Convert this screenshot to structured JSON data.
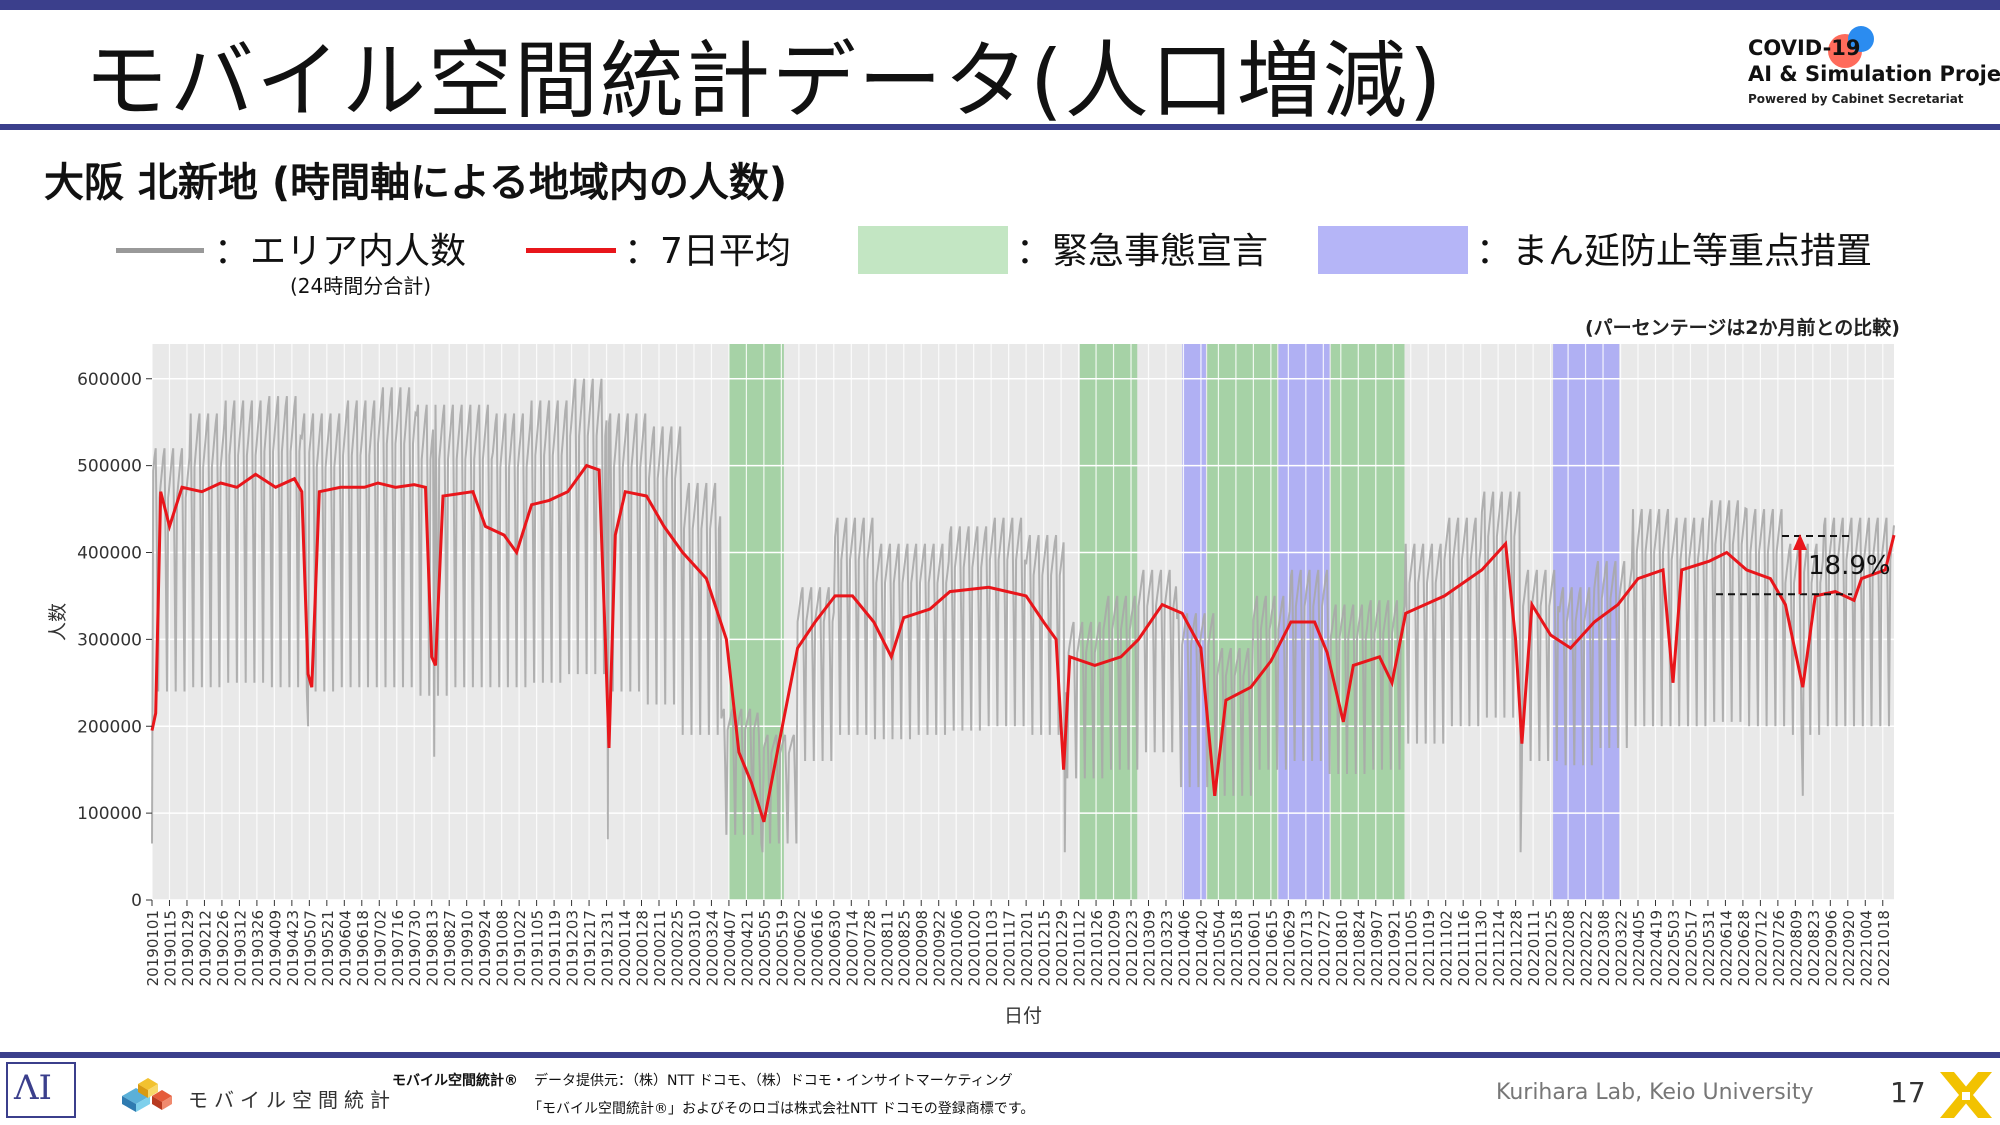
{
  "slide": {
    "title": "モバイル空間統計データ(人口増減)",
    "logo": {
      "line1": "COVID-19",
      "line2": "AI & Simulation Project",
      "line3": "Powered by Cabinet Secretariat"
    },
    "subtitle": "大阪 北新地 (時間軸による地域内の人数)",
    "legend": {
      "area_count": "：エリア内人数",
      "area_count_note": "(24時間分合計)",
      "avg7": "：7日平均",
      "emergency": "：緊急事態宣言",
      "semi_emergency": "：まん延防止等重点措置"
    },
    "colors": {
      "raw_series": "#a9a9a9",
      "avg_series": "#e8161b",
      "emergency_band": "#8fc98f",
      "semi_emergency_band": "#9c9cf5",
      "plot_background": "#e9e9e9",
      "accent": "#3b3f8c"
    },
    "footer": {
      "brand_mark": "モバイル空間統計®",
      "brand_text": "モバイル空間統計",
      "provider": "データ提供元：（株）NTT ドコモ、（株）ドコモ・インサイトマーケティング",
      "trademark": "「モバイル空間統計®」およびそのロゴは株式会社NTT ドコモの登録商標です。",
      "lab": "Kurihara Lab, Keio University",
      "page": "17"
    }
  },
  "chart_data": {
    "type": "line",
    "title": "",
    "xlabel": "日付",
    "ylabel": "人数",
    "note": "(パーセンテージは2か月前との比較)",
    "ylim": [
      0,
      640000
    ],
    "yticks": [
      0,
      100000,
      200000,
      300000,
      400000,
      500000,
      600000
    ],
    "x_range": [
      "20190101",
      "20221027"
    ],
    "x_tick_labels": [
      "20190101",
      "20190115",
      "20190129",
      "20190212",
      "20190226",
      "20190312",
      "20190326",
      "20190409",
      "20190423",
      "20190507",
      "20190521",
      "20190604",
      "20190618",
      "20190702",
      "20190716",
      "20190730",
      "20190813",
      "20190827",
      "20190910",
      "20190924",
      "20191008",
      "20191022",
      "20191105",
      "20191119",
      "20191203",
      "20191217",
      "20191231",
      "20200114",
      "20200128",
      "20200211",
      "20200225",
      "20200310",
      "20200324",
      "20200407",
      "20200421",
      "20200505",
      "20200519",
      "20200602",
      "20200616",
      "20200630",
      "20200714",
      "20200728",
      "20200811",
      "20200825",
      "20200908",
      "20200922",
      "20201006",
      "20201020",
      "20201103",
      "20201117",
      "20201201",
      "20201215",
      "20201229",
      "20210112",
      "20210126",
      "20210209",
      "20210223",
      "20210309",
      "20210323",
      "20210406",
      "20210420",
      "20210504",
      "20210518",
      "20210601",
      "20210615",
      "20210629",
      "20210713",
      "20210727",
      "20210810",
      "20210824",
      "20210907",
      "20210921",
      "20211005",
      "20211019",
      "20211102",
      "20211116",
      "20211130",
      "20211214",
      "20211228",
      "20220111",
      "20220125",
      "20220208",
      "20220222",
      "20220308",
      "20220322",
      "20220405",
      "20220419",
      "20220503",
      "20220517",
      "20220531",
      "20220614",
      "20220628",
      "20220712",
      "20220726",
      "20220809",
      "20220823",
      "20220906",
      "20220920",
      "20221004",
      "20221018"
    ],
    "grid": true,
    "emergency_periods": [
      [
        "20200407",
        "20200521"
      ],
      [
        "20210113",
        "20210228"
      ],
      [
        "20210425",
        "20210620"
      ],
      [
        "20210802",
        "20210930"
      ]
    ],
    "semi_emergency_periods": [
      [
        "20210405",
        "20210424"
      ],
      [
        "20210621",
        "20210801"
      ],
      [
        "20220127",
        "20220321"
      ]
    ],
    "series": [
      {
        "name": "エリア内人数",
        "style": "daily",
        "monthly_profile": [
          {
            "month": "201901",
            "weekday": 520000,
            "weekend": 240000
          },
          {
            "month": "201902",
            "weekday": 560000,
            "weekend": 245000
          },
          {
            "month": "201903",
            "weekday": 575000,
            "weekend": 250000
          },
          {
            "month": "201904",
            "weekday": 580000,
            "weekend": 245000
          },
          {
            "month": "201905",
            "weekday": 560000,
            "weekend": 240000
          },
          {
            "month": "201906",
            "weekday": 575000,
            "weekend": 245000
          },
          {
            "month": "201907",
            "weekday": 590000,
            "weekend": 245000
          },
          {
            "month": "201908",
            "weekday": 570000,
            "weekend": 235000
          },
          {
            "month": "201909",
            "weekday": 570000,
            "weekend": 245000
          },
          {
            "month": "201910",
            "weekday": 560000,
            "weekend": 245000
          },
          {
            "month": "201911",
            "weekday": 575000,
            "weekend": 250000
          },
          {
            "month": "201912",
            "weekday": 600000,
            "weekend": 260000
          },
          {
            "month": "202001",
            "weekday": 560000,
            "weekend": 240000
          },
          {
            "month": "202002",
            "weekday": 545000,
            "weekend": 225000
          },
          {
            "month": "202003",
            "weekday": 480000,
            "weekend": 190000
          },
          {
            "month": "202004",
            "weekday": 220000,
            "weekend": 75000
          },
          {
            "month": "202005",
            "weekday": 190000,
            "weekend": 65000
          },
          {
            "month": "202006",
            "weekday": 360000,
            "weekend": 160000
          },
          {
            "month": "202007",
            "weekday": 440000,
            "weekend": 190000
          },
          {
            "month": "202008",
            "weekday": 410000,
            "weekend": 185000
          },
          {
            "month": "202009",
            "weekday": 410000,
            "weekend": 190000
          },
          {
            "month": "202010",
            "weekday": 430000,
            "weekend": 195000
          },
          {
            "month": "202011",
            "weekday": 440000,
            "weekend": 200000
          },
          {
            "month": "202012",
            "weekday": 420000,
            "weekend": 190000
          },
          {
            "month": "202101",
            "weekday": 320000,
            "weekend": 140000
          },
          {
            "month": "202102",
            "weekday": 350000,
            "weekend": 150000
          },
          {
            "month": "202103",
            "weekday": 380000,
            "weekend": 170000
          },
          {
            "month": "202104",
            "weekday": 330000,
            "weekend": 130000
          },
          {
            "month": "202105",
            "weekday": 290000,
            "weekend": 120000
          },
          {
            "month": "202106",
            "weekday": 350000,
            "weekend": 150000
          },
          {
            "month": "202107",
            "weekday": 380000,
            "weekend": 160000
          },
          {
            "month": "202108",
            "weekday": 340000,
            "weekend": 145000
          },
          {
            "month": "202109",
            "weekday": 345000,
            "weekend": 150000
          },
          {
            "month": "202110",
            "weekday": 410000,
            "weekend": 180000
          },
          {
            "month": "202111",
            "weekday": 440000,
            "weekend": 200000
          },
          {
            "month": "202112",
            "weekday": 470000,
            "weekend": 210000
          },
          {
            "month": "202201",
            "weekday": 380000,
            "weekend": 160000
          },
          {
            "month": "202202",
            "weekday": 360000,
            "weekend": 155000
          },
          {
            "month": "202203",
            "weekday": 390000,
            "weekend": 175000
          },
          {
            "month": "202204",
            "weekday": 450000,
            "weekend": 200000
          },
          {
            "month": "202205",
            "weekday": 440000,
            "weekend": 200000
          },
          {
            "month": "202206",
            "weekday": 460000,
            "weekend": 205000
          },
          {
            "month": "202207",
            "weekday": 450000,
            "weekend": 200000
          },
          {
            "month": "202208",
            "weekday": 410000,
            "weekend": 190000
          },
          {
            "month": "202209",
            "weekday": 440000,
            "weekend": 200000
          },
          {
            "month": "202210",
            "weekday": 440000,
            "weekend": 200000
          }
        ],
        "holiday_dips": [
          {
            "date": "20190101",
            "value": 65000
          },
          {
            "date": "20190506",
            "value": 200000
          },
          {
            "date": "20190815",
            "value": 165000
          },
          {
            "date": "20200101",
            "value": 70000
          },
          {
            "date": "20200504",
            "value": 55000
          },
          {
            "date": "20210101",
            "value": 55000
          },
          {
            "date": "20220101",
            "value": 55000
          },
          {
            "date": "20220815",
            "value": 120000
          }
        ]
      },
      {
        "name": "7日平均",
        "style": "smooth",
        "points": [
          [
            "20190101",
            195000
          ],
          [
            "20190104",
            215000
          ],
          [
            "20190108",
            470000
          ],
          [
            "20190115",
            430000
          ],
          [
            "20190125",
            475000
          ],
          [
            "20190210",
            470000
          ],
          [
            "20190225",
            480000
          ],
          [
            "20190310",
            475000
          ],
          [
            "20190325",
            490000
          ],
          [
            "20190410",
            475000
          ],
          [
            "20190425",
            485000
          ],
          [
            "20190501",
            470000
          ],
          [
            "20190506",
            260000
          ],
          [
            "20190509",
            245000
          ],
          [
            "20190515",
            470000
          ],
          [
            "20190601",
            475000
          ],
          [
            "20190620",
            475000
          ],
          [
            "20190701",
            480000
          ],
          [
            "20190715",
            475000
          ],
          [
            "20190730",
            478000
          ],
          [
            "20190808",
            475000
          ],
          [
            "20190813",
            280000
          ],
          [
            "20190816",
            270000
          ],
          [
            "20190822",
            465000
          ],
          [
            "20190915",
            470000
          ],
          [
            "20190925",
            430000
          ],
          [
            "20191010",
            420000
          ],
          [
            "20191020",
            400000
          ],
          [
            "20191101",
            455000
          ],
          [
            "20191115",
            460000
          ],
          [
            "20191130",
            470000
          ],
          [
            "20191215",
            500000
          ],
          [
            "20191225",
            495000
          ],
          [
            "20191230",
            300000
          ],
          [
            "20200102",
            175000
          ],
          [
            "20200107",
            420000
          ],
          [
            "20200115",
            470000
          ],
          [
            "20200201",
            465000
          ],
          [
            "20200215",
            430000
          ],
          [
            "20200301",
            400000
          ],
          [
            "20200320",
            370000
          ],
          [
            "20200405",
            300000
          ],
          [
            "20200415",
            170000
          ],
          [
            "20200425",
            135000
          ],
          [
            "20200505",
            90000
          ],
          [
            "20200515",
            165000
          ],
          [
            "20200601",
            290000
          ],
          [
            "20200615",
            320000
          ],
          [
            "20200701",
            350000
          ],
          [
            "20200715",
            350000
          ],
          [
            "20200801",
            320000
          ],
          [
            "20200815",
            280000
          ],
          [
            "20200825",
            325000
          ],
          [
            "20200915",
            335000
          ],
          [
            "20201001",
            355000
          ],
          [
            "20201101",
            360000
          ],
          [
            "20201201",
            350000
          ],
          [
            "20201215",
            320000
          ],
          [
            "20201225",
            300000
          ],
          [
            "20201231",
            150000
          ],
          [
            "20210105",
            280000
          ],
          [
            "20210125",
            270000
          ],
          [
            "20210215",
            280000
          ],
          [
            "20210301",
            300000
          ],
          [
            "20210320",
            340000
          ],
          [
            "20210405",
            330000
          ],
          [
            "20210420",
            290000
          ],
          [
            "20210501",
            120000
          ],
          [
            "20210510",
            230000
          ],
          [
            "20210530",
            245000
          ],
          [
            "20210615",
            275000
          ],
          [
            "20210701",
            320000
          ],
          [
            "20210720",
            320000
          ],
          [
            "20210730",
            285000
          ],
          [
            "20210812",
            205000
          ],
          [
            "20210820",
            270000
          ],
          [
            "20210910",
            280000
          ],
          [
            "20210920",
            250000
          ],
          [
            "20211001",
            330000
          ],
          [
            "20211101",
            350000
          ],
          [
            "20211201",
            380000
          ],
          [
            "20211220",
            410000
          ],
          [
            "20211228",
            300000
          ],
          [
            "20220102",
            180000
          ],
          [
            "20220110",
            340000
          ],
          [
            "20220125",
            305000
          ],
          [
            "20220210",
            290000
          ],
          [
            "20220301",
            320000
          ],
          [
            "20220320",
            340000
          ],
          [
            "20220405",
            370000
          ],
          [
            "20220425",
            380000
          ],
          [
            "20220503",
            250000
          ],
          [
            "20220510",
            380000
          ],
          [
            "20220601",
            390000
          ],
          [
            "20220615",
            400000
          ],
          [
            "20220701",
            380000
          ],
          [
            "20220720",
            370000
          ],
          [
            "20220801",
            340000
          ],
          [
            "20220815",
            245000
          ],
          [
            "20220825",
            350000
          ],
          [
            "20220910",
            355000
          ],
          [
            "20220925",
            345000
          ],
          [
            "20221001",
            370000
          ],
          [
            "20221020",
            380000
          ],
          [
            "20221027",
            420000
          ]
        ]
      }
    ],
    "annotation": {
      "label": "18.9%",
      "from": 352000,
      "to": 419000
    }
  }
}
